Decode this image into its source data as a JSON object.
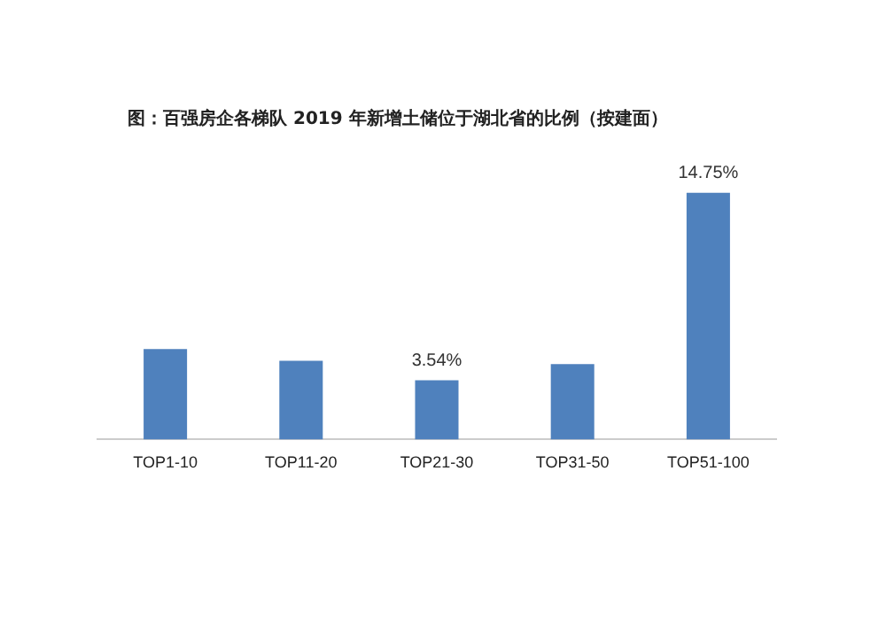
{
  "chart_data": {
    "type": "bar",
    "title": "图：百强房企各梯队 2019 年新增土储位于湖北省的比例（按建面）",
    "categories": [
      "TOP1-10",
      "TOP11-20",
      "TOP21-30",
      "TOP31-50",
      "TOP51-100"
    ],
    "values": [
      5.4,
      4.7,
      3.54,
      4.5,
      14.75
    ],
    "value_labels": [
      null,
      null,
      "3.54%",
      null,
      "14.75%"
    ],
    "color": "#4f81bd",
    "grid": false,
    "legend": false
  }
}
